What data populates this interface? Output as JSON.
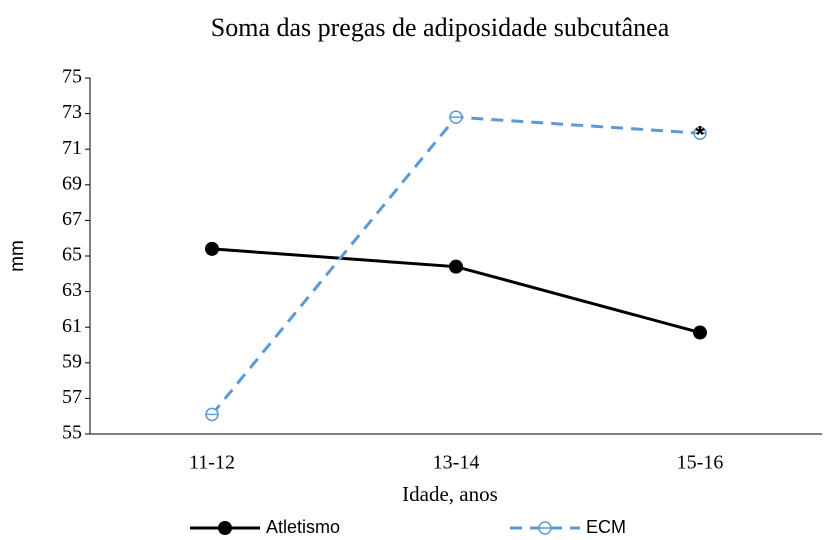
{
  "chart_data": {
    "type": "line",
    "title": "Soma das pregas de adiposidade subcutânea",
    "xlabel": "Idade, anos",
    "ylabel": "mm",
    "categories": [
      "11-12",
      "13-14",
      "15-16"
    ],
    "series": [
      {
        "name": "Atletismo",
        "color": "#000000",
        "style": "solid",
        "marker": "filled",
        "values": [
          65.4,
          64.4,
          60.7
        ]
      },
      {
        "name": "ECM",
        "color": "#5b9bd5",
        "style": "dashed",
        "marker": "open",
        "values": [
          56.1,
          72.8,
          71.9
        ]
      }
    ],
    "annotation": "*",
    "ylim": [
      55,
      75
    ],
    "yticks": [
      55,
      57,
      59,
      61,
      63,
      65,
      67,
      69,
      71,
      73,
      75
    ],
    "grid": false,
    "legend": "bottom"
  }
}
